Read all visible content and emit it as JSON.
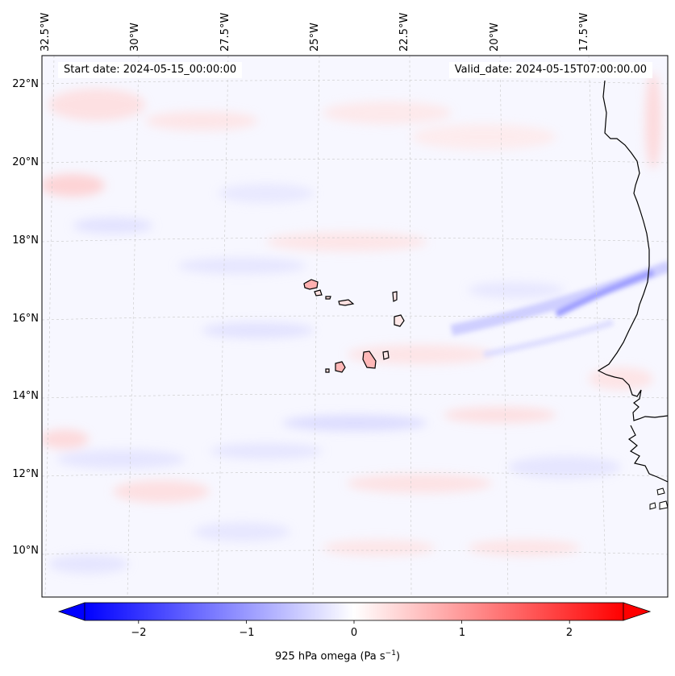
{
  "map": {
    "start_date": "Start date: 2024-05-15_00:00:00",
    "valid_date": "Valid_date: 2024-05-15T07:00:00.00",
    "lon_labels": [
      "32.5°W",
      "30°W",
      "27.5°W",
      "25°W",
      "22.5°W",
      "20°W",
      "17.5°W"
    ],
    "lat_labels": [
      "22°N",
      "20°N",
      "18°N",
      "16°N",
      "14°N",
      "12°N",
      "10°N"
    ],
    "extent": {
      "lon_min": -33.0,
      "lon_max": -16.0,
      "lat_min": 8.9,
      "lat_max": 22.8
    },
    "field": "925 hPa omega",
    "regions": [
      "Cape Verde islands",
      "West African coast"
    ]
  },
  "colorbar": {
    "label": "925 hPa omega (Pa s",
    "label_sup": "−1",
    "label_close": ")",
    "ticks": [
      "−2",
      "−1",
      "0",
      "1",
      "2"
    ],
    "tick_values": [
      -2,
      -1,
      0,
      1,
      2
    ],
    "range": [
      -2.5,
      2.5
    ],
    "low_color": "#0000ff",
    "mid_color": "#ffffff",
    "high_color": "#ff0000",
    "extend": "both"
  }
}
